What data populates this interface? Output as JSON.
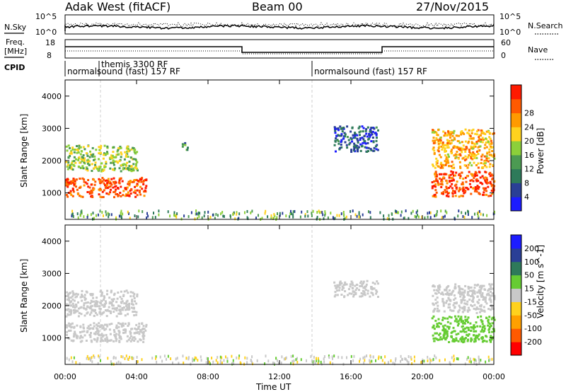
{
  "header": {
    "site": "Adak West (fitACF)",
    "beam": "Beam 00",
    "date": "27/Nov/2015"
  },
  "panels": {
    "noise": {
      "left_label": "N.Sky",
      "right_label": "N.Search",
      "left_ticks": [
        "10^5",
        "10^0"
      ],
      "right_ticks": [
        "10^5",
        "10^0"
      ]
    },
    "freq": {
      "left_label_1": "Freq.",
      "left_label_2": "[MHz]",
      "left_ticks": [
        "18",
        "8"
      ],
      "right_label": "Nave",
      "right_ticks": [
        "60",
        "0"
      ]
    },
    "cpid": {
      "label": "CPID",
      "entries": [
        "normalsound (fast) 157 RF",
        "themis 3300 RF",
        "normalsound (fast) 157 RF"
      ]
    }
  },
  "chart_data": [
    {
      "type": "heatmap",
      "title": "Power",
      "ylabel": "Slant Range [km]",
      "xlabel": "Time UT",
      "x_ticks": [
        "00:00",
        "04:00",
        "08:00",
        "12:00",
        "16:00",
        "20:00",
        "00:00"
      ],
      "y_ticks": [
        1000,
        2000,
        3000,
        4000
      ],
      "ylim": [
        180,
        4500
      ],
      "colorbar": {
        "label": "Power [dB]",
        "ticks": [
          4,
          8,
          12,
          16,
          20,
          24,
          28
        ],
        "colors": [
          "#1c1cff",
          "#2a3f96",
          "#2e7a5a",
          "#4c9a52",
          "#8ccf3a",
          "#ffd21e",
          "#ff9a00",
          "#ff5a00",
          "#ff1a00"
        ]
      },
      "echo_regions": [
        {
          "time_start": "00:00",
          "time_end": "04:30",
          "range_min": 900,
          "range_max": 1500,
          "power_db": 28
        },
        {
          "time_start": "00:00",
          "time_end": "04:00",
          "range_min": 1700,
          "range_max": 2500,
          "power_db": 16
        },
        {
          "time_start": "06:30",
          "time_end": "06:50",
          "range_min": 2300,
          "range_max": 2600,
          "power_db": 10
        },
        {
          "time_start": "15:00",
          "time_end": "17:30",
          "range_min": 2300,
          "range_max": 3100,
          "power_db": 6
        },
        {
          "time_start": "20:30",
          "time_end": "24:00",
          "range_min": 900,
          "range_max": 1700,
          "power_db": 28
        },
        {
          "time_start": "20:30",
          "time_end": "24:00",
          "range_min": 1800,
          "range_max": 3000,
          "power_db": 22
        }
      ]
    },
    {
      "type": "heatmap",
      "title": "Velocity",
      "ylabel": "Slant Range [km]",
      "xlabel": "Time UT",
      "x_ticks": [
        "00:00",
        "04:00",
        "08:00",
        "12:00",
        "16:00",
        "20:00",
        "00:00"
      ],
      "y_ticks": [
        1000,
        2000,
        3000,
        4000
      ],
      "ylim": [
        180,
        4500
      ],
      "colorbar": {
        "label": "Velocity [m s^-1]",
        "ticks": [
          -200,
          -100,
          -50,
          -15,
          15,
          50,
          100,
          200
        ],
        "colors": [
          "#ff0000",
          "#ff5a00",
          "#ffa000",
          "#ffd21e",
          "#c8c8c8",
          "#66cc33",
          "#2e7a5a",
          "#2a3f96",
          "#1c1cff"
        ]
      },
      "echo_regions": [
        {
          "time_start": "00:00",
          "time_end": "04:30",
          "range_min": 900,
          "range_max": 1500,
          "velocity": 0
        },
        {
          "time_start": "00:00",
          "time_end": "04:00",
          "range_min": 1700,
          "range_max": 2500,
          "velocity": 0
        },
        {
          "time_start": "15:00",
          "time_end": "17:30",
          "range_min": 2300,
          "range_max": 2800,
          "velocity": 0
        },
        {
          "time_start": "20:30",
          "time_end": "24:00",
          "range_min": 900,
          "range_max": 1700,
          "velocity": 30
        },
        {
          "time_start": "20:30",
          "time_end": "24:00",
          "range_min": 1800,
          "range_max": 2700,
          "velocity": 0
        }
      ]
    }
  ],
  "colors": {
    "grid": "#c8c8c8"
  }
}
